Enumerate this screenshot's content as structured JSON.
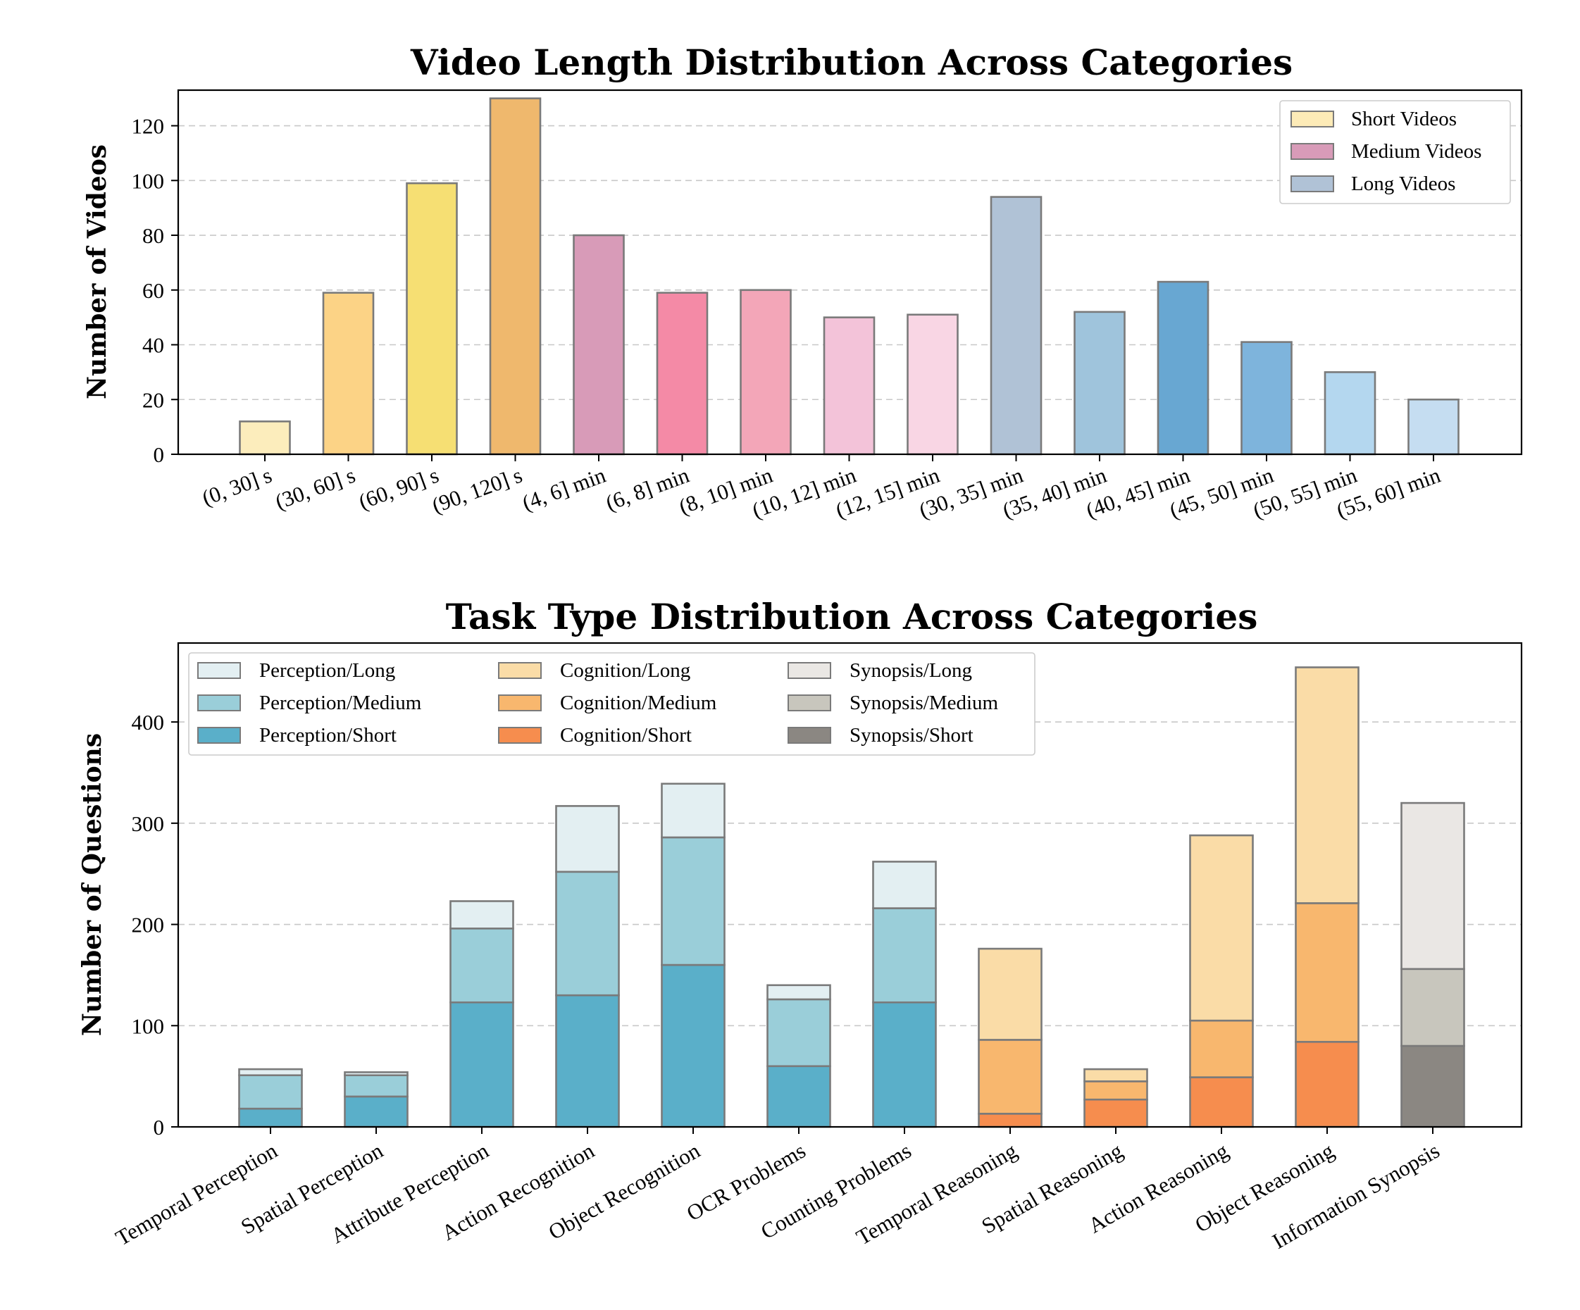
{
  "charts": [
    {
      "title": "Video Length Distribution Across Categories",
      "ylabel": "Number of Videos"
    },
    {
      "title": "Task Type Distribution Across Categories",
      "ylabel": "Number of Questions"
    }
  ],
  "chart_data": [
    {
      "type": "bar",
      "title": "Video Length Distribution Across Categories",
      "xlabel": "",
      "ylabel": "Number of Videos",
      "ylim": [
        0,
        133
      ],
      "yticks": [
        0,
        20,
        40,
        60,
        80,
        100,
        120
      ],
      "grid": "y, dashed",
      "legend_position": "top-right",
      "legend": [
        {
          "label": "Short Videos",
          "color": "#FDEBB7"
        },
        {
          "label": "Medium Videos",
          "color": "#D89BB8"
        },
        {
          "label": "Long Videos",
          "color": "#B0C2D6"
        }
      ],
      "categories": [
        "(0, 30] s",
        "(30, 60] s",
        "(60, 90] s",
        "(90, 120] s",
        "(4, 6] min",
        "(6, 8] min",
        "(8, 10] min",
        "(10, 12] min",
        "(12, 15] min",
        "(30, 35] min",
        "(35, 40] min",
        "(40, 45] min",
        "(45, 50] min",
        "(50, 55] min",
        "(55, 60] min"
      ],
      "values": [
        12,
        59,
        99,
        130,
        80,
        59,
        60,
        50,
        51,
        94,
        52,
        63,
        41,
        30,
        20
      ],
      "colors": [
        "#FCEDBC",
        "#FCD386",
        "#F6DF73",
        "#EFB86D",
        "#D89BB8",
        "#F48AA6",
        "#F3A6B8",
        "#F3C3D9",
        "#F9D6E4",
        "#B0C2D6",
        "#9FC4DC",
        "#68A7D2",
        "#7EB4DC",
        "#B4D7EF",
        "#C5DDF1"
      ]
    },
    {
      "type": "bar",
      "stacked": true,
      "title": "Task Type Distribution Across Categories",
      "xlabel": "",
      "ylabel": "Number of Questions",
      "ylim": [
        0,
        478
      ],
      "yticks": [
        0,
        100,
        200,
        300,
        400
      ],
      "grid": "y, dashed",
      "legend_position": "top-left",
      "legend_columns": 3,
      "legend": [
        {
          "label": "Perception/Long",
          "color": "#E3EFF2"
        },
        {
          "label": "Perception/Medium",
          "color": "#9ACED9"
        },
        {
          "label": "Perception/Short",
          "color": "#5AAFC9"
        },
        {
          "label": "Cognition/Long",
          "color": "#FADCA7"
        },
        {
          "label": "Cognition/Medium",
          "color": "#F8B76E"
        },
        {
          "label": "Cognition/Short",
          "color": "#F68D4E"
        },
        {
          "label": "Synopsis/Long",
          "color": "#EAE7E4"
        },
        {
          "label": "Synopsis/Medium",
          "color": "#C8C6BD"
        },
        {
          "label": "Synopsis/Short",
          "color": "#8B8782"
        }
      ],
      "categories": [
        "Temporal Perception",
        "Spatial Perception",
        "Attribute Perception",
        "Action Recognition",
        "Object Recognition",
        "OCR Problems",
        "Counting Problems",
        "Temporal Reasoning",
        "Spatial Reasoning",
        "Action Reasoning",
        "Object Reasoning",
        "Information Synopsis"
      ],
      "bars": [
        {
          "group": "Perception",
          "short": 18,
          "medium": 33,
          "long": 6
        },
        {
          "group": "Perception",
          "short": 30,
          "medium": 21,
          "long": 3
        },
        {
          "group": "Perception",
          "short": 123,
          "medium": 73,
          "long": 27
        },
        {
          "group": "Perception",
          "short": 130,
          "medium": 122,
          "long": 65
        },
        {
          "group": "Perception",
          "short": 160,
          "medium": 126,
          "long": 53
        },
        {
          "group": "Perception",
          "short": 60,
          "medium": 66,
          "long": 14
        },
        {
          "group": "Perception",
          "short": 123,
          "medium": 93,
          "long": 46
        },
        {
          "group": "Cognition",
          "short": 13,
          "medium": 73,
          "long": 90
        },
        {
          "group": "Cognition",
          "short": 27,
          "medium": 18,
          "long": 12
        },
        {
          "group": "Cognition",
          "short": 49,
          "medium": 56,
          "long": 183
        },
        {
          "group": "Cognition",
          "short": 84,
          "medium": 137,
          "long": 233
        },
        {
          "group": "Synopsis",
          "short": 80,
          "medium": 76,
          "long": 164
        }
      ]
    }
  ]
}
